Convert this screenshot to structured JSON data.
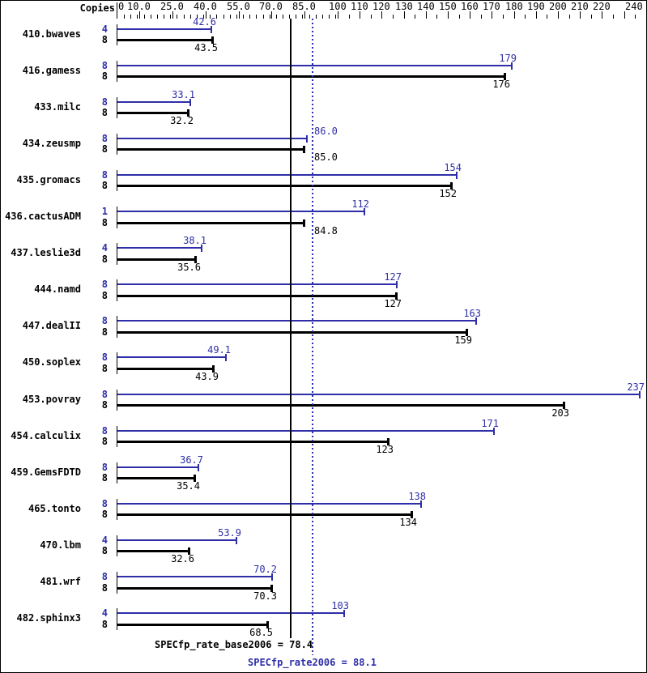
{
  "header": {
    "copies_label": "Copies"
  },
  "colors": {
    "peak": "#2e2ea8",
    "base": "#000000",
    "background": "#ffffff"
  },
  "axis": {
    "tick_labels": [
      {
        "v": 0,
        "label": "0"
      },
      {
        "v": 10,
        "label": "10.0"
      },
      {
        "v": 25,
        "label": "25.0"
      },
      {
        "v": 40,
        "label": "40.0"
      },
      {
        "v": 55,
        "label": "55.0"
      },
      {
        "v": 70,
        "label": "70.0"
      },
      {
        "v": 85,
        "label": "85.0"
      },
      {
        "v": 100,
        "label": "100"
      },
      {
        "v": 110,
        "label": "110"
      },
      {
        "v": 120,
        "label": "120"
      },
      {
        "v": 130,
        "label": "130"
      },
      {
        "v": 140,
        "label": "140"
      },
      {
        "v": 150,
        "label": "150"
      },
      {
        "v": 160,
        "label": "160"
      },
      {
        "v": 170,
        "label": "170"
      },
      {
        "v": 180,
        "label": "180"
      },
      {
        "v": 190,
        "label": "190"
      },
      {
        "v": 200,
        "label": "200"
      },
      {
        "v": 210,
        "label": "210"
      },
      {
        "v": 220,
        "label": "220"
      },
      {
        "v": 240,
        "label": "240"
      }
    ]
  },
  "footer": {
    "base_label": "SPECfp_rate_base2006 = 78.4",
    "peak_label": "SPECfp_rate2006 = 88.1"
  },
  "chart_data": {
    "type": "bar",
    "orientation": "horizontal",
    "xlim": [
      0,
      240
    ],
    "grid": false,
    "legend_position": "none",
    "title": "",
    "xlabel": "",
    "ylabel": "Copies",
    "reference_lines": [
      {
        "name": "SPECfp_rate_base2006",
        "value": 78.4,
        "style": "solid",
        "color": "#000000"
      },
      {
        "name": "SPECfp_rate2006",
        "value": 88.1,
        "style": "dotted",
        "color": "#2e2ea8"
      }
    ],
    "series": [
      {
        "name": "peak",
        "color": "#2e2ea8"
      },
      {
        "name": "base",
        "color": "#000000"
      }
    ],
    "benchmarks": [
      {
        "name": "410.bwaves",
        "peak_copies": "4",
        "base_copies": "8",
        "peak": 42.6,
        "base": 43.5,
        "peak_label": "42.6",
        "base_label": "43.5"
      },
      {
        "name": "416.gamess",
        "peak_copies": "8",
        "base_copies": "8",
        "peak": 179,
        "base": 176,
        "peak_label": "179",
        "base_label": "176"
      },
      {
        "name": "433.milc",
        "peak_copies": "8",
        "base_copies": "8",
        "peak": 33.1,
        "base": 32.2,
        "peak_label": "33.1",
        "base_label": "32.2"
      },
      {
        "name": "434.zeusmp",
        "peak_copies": "8",
        "base_copies": "8",
        "peak": 86.0,
        "base": 85.0,
        "peak_label": "86.0",
        "base_label": "85.0"
      },
      {
        "name": "435.gromacs",
        "peak_copies": "8",
        "base_copies": "8",
        "peak": 154,
        "base": 152,
        "peak_label": "154",
        "base_label": "152"
      },
      {
        "name": "436.cactusADM",
        "peak_copies": "1",
        "base_copies": "8",
        "peak": 112,
        "base": 84.8,
        "peak_label": "112",
        "base_label": "84.8"
      },
      {
        "name": "437.leslie3d",
        "peak_copies": "4",
        "base_copies": "8",
        "peak": 38.1,
        "base": 35.6,
        "peak_label": "38.1",
        "base_label": "35.6"
      },
      {
        "name": "444.namd",
        "peak_copies": "8",
        "base_copies": "8",
        "peak": 127,
        "base": 127,
        "peak_label": "127",
        "base_label": "127"
      },
      {
        "name": "447.dealII",
        "peak_copies": "8",
        "base_copies": "8",
        "peak": 163,
        "base": 159,
        "peak_label": "163",
        "base_label": "159"
      },
      {
        "name": "450.soplex",
        "peak_copies": "8",
        "base_copies": "8",
        "peak": 49.1,
        "base": 43.9,
        "peak_label": "49.1",
        "base_label": "43.9"
      },
      {
        "name": "453.povray",
        "peak_copies": "8",
        "base_copies": "8",
        "peak": 237,
        "base": 203,
        "peak_label": "237",
        "base_label": "203"
      },
      {
        "name": "454.calculix",
        "peak_copies": "8",
        "base_copies": "8",
        "peak": 171,
        "base": 123,
        "peak_label": "171",
        "base_label": "123"
      },
      {
        "name": "459.GemsFDTD",
        "peak_copies": "8",
        "base_copies": "8",
        "peak": 36.7,
        "base": 35.4,
        "peak_label": "36.7",
        "base_label": "35.4"
      },
      {
        "name": "465.tonto",
        "peak_copies": "8",
        "base_copies": "8",
        "peak": 138,
        "base": 134,
        "peak_label": "138",
        "base_label": "134"
      },
      {
        "name": "470.lbm",
        "peak_copies": "4",
        "base_copies": "8",
        "peak": 53.9,
        "base": 32.6,
        "peak_label": "53.9",
        "base_label": "32.6"
      },
      {
        "name": "481.wrf",
        "peak_copies": "8",
        "base_copies": "8",
        "peak": 70.2,
        "base": 70.3,
        "peak_label": "70.2",
        "base_label": "70.3"
      },
      {
        "name": "482.sphinx3",
        "peak_copies": "4",
        "base_copies": "8",
        "peak": 103,
        "base": 68.5,
        "peak_label": "103",
        "base_label": "68.5"
      }
    ]
  }
}
